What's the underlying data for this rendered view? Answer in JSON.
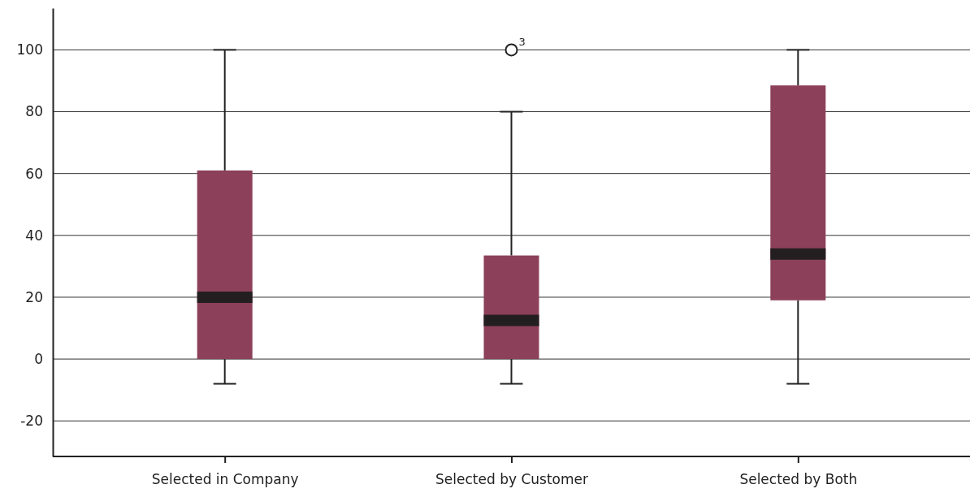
{
  "chart_data": {
    "type": "box",
    "categories": [
      "Selected in Company",
      "Selected by Customer",
      "Selected by Both"
    ],
    "boxes": [
      {
        "low": -8,
        "q1": 0,
        "median": 20,
        "q3": 61,
        "high": 100
      },
      {
        "low": -8,
        "q1": 0,
        "median": 12.5,
        "q3": 33.5,
        "high": 80,
        "outliers": [
          100
        ]
      },
      {
        "low": -8,
        "q1": 19,
        "median": 34,
        "q3": 88.5,
        "high": 100
      }
    ],
    "color": "#8c405a",
    "ylim": [
      -31.5,
      113.5
    ],
    "yticks": [
      -20,
      0,
      20,
      40,
      60,
      80,
      100
    ],
    "grid": "y",
    "annotations": [
      "3"
    ]
  }
}
